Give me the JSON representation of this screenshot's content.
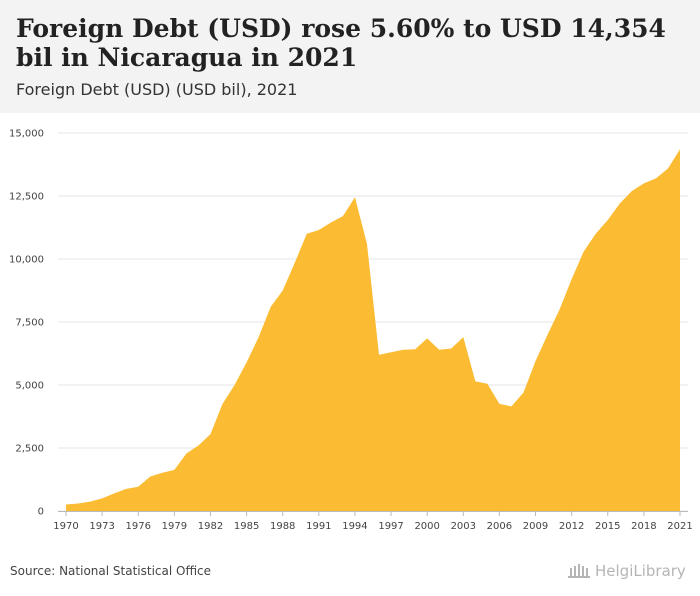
{
  "header": {
    "title": "Foreign Debt (USD) rose 5.60% to USD 14,354 bil in Nicaragua in 2021",
    "subtitle": "Foreign Debt (USD) (USD bil), 2021"
  },
  "footer": {
    "source": "Source: National Statistical Office",
    "logo_text": "HelgiLibrary"
  },
  "colors": {
    "area": "#fbbc33",
    "grid": "#e6e6e6",
    "axis": "#bbbbbb",
    "header_bg": "#f3f3f3"
  },
  "chart_data": {
    "type": "area",
    "title": "Foreign Debt (USD) rose 5.60% to USD 14,354 bil in Nicaragua in 2021",
    "subtitle": "Foreign Debt (USD) (USD bil), 2021",
    "xlabel": "",
    "ylabel": "",
    "ylim": [
      0,
      15000
    ],
    "yticks": [
      0,
      2500,
      5000,
      7500,
      10000,
      12500,
      15000
    ],
    "ytick_labels": [
      "0",
      "2,500",
      "5,000",
      "7,500",
      "10,000",
      "12,500",
      "15,000"
    ],
    "xticks": [
      1970,
      1973,
      1976,
      1979,
      1982,
      1985,
      1988,
      1991,
      1994,
      1997,
      2000,
      2003,
      2006,
      2009,
      2012,
      2015,
      2018,
      2021
    ],
    "grid": true,
    "legend": "none",
    "x": [
      1970,
      1971,
      1972,
      1973,
      1974,
      1975,
      1976,
      1977,
      1978,
      1979,
      1980,
      1981,
      1982,
      1983,
      1984,
      1985,
      1986,
      1987,
      1988,
      1989,
      1990,
      1991,
      1992,
      1993,
      1994,
      1995,
      1996,
      1997,
      1998,
      1999,
      2000,
      2001,
      2002,
      2003,
      2004,
      2005,
      2006,
      2007,
      2008,
      2009,
      2010,
      2011,
      2012,
      2013,
      2014,
      2015,
      2016,
      2017,
      2018,
      2019,
      2020,
      2021
    ],
    "values": [
      260,
      300,
      370,
      500,
      700,
      880,
      960,
      1370,
      1520,
      1630,
      2280,
      2600,
      3050,
      4250,
      5000,
      5900,
      6900,
      8100,
      8750,
      9850,
      11000,
      11150,
      11450,
      11700,
      12450,
      10600,
      6200,
      6300,
      6400,
      6420,
      6850,
      6400,
      6450,
      6900,
      5150,
      5050,
      4250,
      4150,
      4700,
      5950,
      7000,
      8000,
      9200,
      10300,
      11000,
      11550,
      12200,
      12700,
      13000,
      13200,
      13590,
      14354
    ]
  }
}
